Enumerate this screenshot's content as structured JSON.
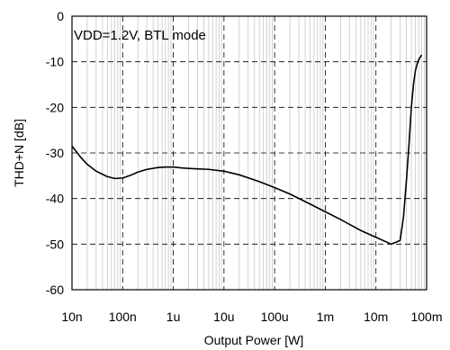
{
  "chart_data": {
    "type": "line",
    "title": "",
    "xlabel": "Output Power [W]",
    "ylabel": "THD+N [dB]",
    "x_scale": "log",
    "xlim": [
      1e-08,
      0.1
    ],
    "ylim": [
      -60,
      0
    ],
    "grid": true,
    "annotation": "VDD=1.2V, BTL mode",
    "x_ticks": [
      {
        "value": 1e-08,
        "label": "10n"
      },
      {
        "value": 1e-07,
        "label": "100n"
      },
      {
        "value": 1e-06,
        "label": "1u"
      },
      {
        "value": 1e-05,
        "label": "10u"
      },
      {
        "value": 0.0001,
        "label": "100u"
      },
      {
        "value": 0.001,
        "label": "1m"
      },
      {
        "value": 0.01,
        "label": "10m"
      },
      {
        "value": 0.1,
        "label": "100m"
      }
    ],
    "y_ticks": [
      {
        "value": 0,
        "label": "0"
      },
      {
        "value": -10,
        "label": "-10"
      },
      {
        "value": -20,
        "label": "-20"
      },
      {
        "value": -30,
        "label": "-30"
      },
      {
        "value": -40,
        "label": "-40"
      },
      {
        "value": -50,
        "label": "-50"
      },
      {
        "value": -60,
        "label": "-60"
      }
    ],
    "series": [
      {
        "color": "#000000",
        "x": [
          1e-08,
          1.5e-08,
          2e-08,
          3e-08,
          5e-08,
          7e-08,
          1e-07,
          1.5e-07,
          2e-07,
          3e-07,
          5e-07,
          7e-07,
          1e-06,
          1.5e-06,
          2e-06,
          3e-06,
          5e-06,
          1e-05,
          2e-05,
          5e-05,
          0.0001,
          0.0002,
          0.0005,
          0.001,
          0.002,
          0.005,
          0.01,
          0.02,
          0.03,
          0.035,
          0.04,
          0.045,
          0.05,
          0.055,
          0.06,
          0.065,
          0.07,
          0.075,
          0.08
        ],
        "y": [
          -28.5,
          -31,
          -32.5,
          -34,
          -35.2,
          -35.6,
          -35.5,
          -34.8,
          -34.2,
          -33.6,
          -33.2,
          -33.1,
          -33.1,
          -33.3,
          -33.4,
          -33.5,
          -33.6,
          -34,
          -34.8,
          -36.3,
          -37.6,
          -39,
          -41.2,
          -42.9,
          -44.6,
          -47,
          -48.5,
          -50,
          -49.2,
          -44,
          -36,
          -28,
          -20,
          -15,
          -12,
          -10.5,
          -9.5,
          -9,
          -8.5
        ]
      }
    ]
  }
}
